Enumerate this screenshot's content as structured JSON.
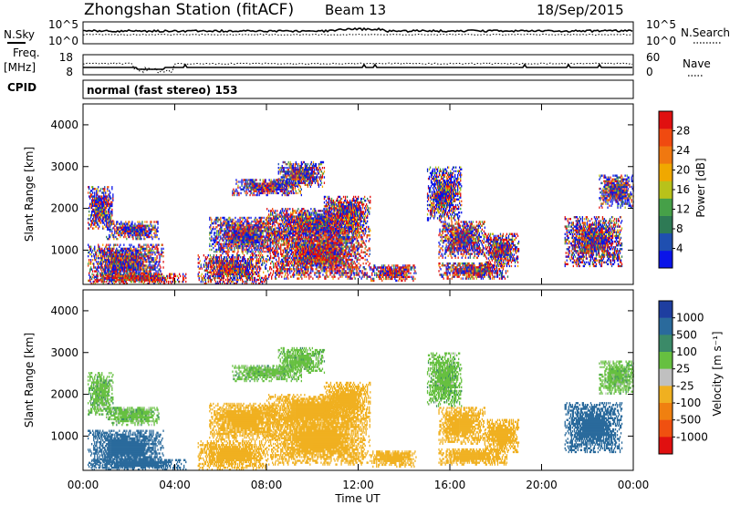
{
  "header": {
    "station": "Zhongshan Station (fitACF)",
    "beam": "Beam 13",
    "date": "18/Sep/2015"
  },
  "noise_panel": {
    "left_label": "N.Sky",
    "right_label": "N.Search",
    "left_ticks": [
      "10^5",
      "10^0"
    ],
    "right_ticks": [
      "10^5",
      "10^0"
    ]
  },
  "freq_panel": {
    "label_line1": "Freq.",
    "label_line2": "[MHz]",
    "left_ticks": [
      "18",
      "8"
    ],
    "right_ticks": [
      "60",
      "0"
    ],
    "right_label": "Nave"
  },
  "cpid": {
    "label": "CPID",
    "value": "normal (fast stereo) 153"
  },
  "colors": {
    "power_scale": [
      "#0a14e8",
      "#1f4fb0",
      "#2e7a55",
      "#46a048",
      "#b8c21a",
      "#f0a800",
      "#f07810",
      "#f04a10",
      "#e01010"
    ],
    "velocity_scale": [
      "#1e3ea0",
      "#2a6a9c",
      "#3b8a68",
      "#66c040",
      "#c0c0c0",
      "#f0b020",
      "#f08010",
      "#f05010",
      "#e01010"
    ]
  },
  "chart_data": [
    {
      "type": "heatmap",
      "name": "power",
      "x_axis": {
        "range": [
          0,
          24
        ],
        "ticks": [
          "00:00",
          "04:00",
          "08:00",
          "12:00",
          "16:00",
          "20:00",
          "00:00"
        ],
        "label": "Time UT"
      },
      "y_axis": {
        "range": [
          180,
          4500
        ],
        "ticks": [
          1000,
          2000,
          3000,
          4000
        ],
        "label": "Slant Range [km]"
      },
      "colorbar": {
        "label": "Power [dB]",
        "ticks": [
          "4",
          "8",
          "12",
          "16",
          "20",
          "24",
          "28"
        ],
        "range": [
          0,
          30
        ]
      },
      "regions": [
        {
          "t0": 0.2,
          "t1": 1.3,
          "r0": 1500,
          "r1": 2500,
          "v": 9
        },
        {
          "t0": 0.2,
          "t1": 3.5,
          "r0": 250,
          "r1": 1150,
          "v": 10
        },
        {
          "t0": 0.3,
          "t1": 4.5,
          "r0": 180,
          "r1": 450,
          "v": 25
        },
        {
          "t0": 1.0,
          "t1": 3.3,
          "r0": 1250,
          "r1": 1700,
          "v": 8
        },
        {
          "t0": 5.0,
          "t1": 8.0,
          "r0": 180,
          "r1": 900,
          "v": 15
        },
        {
          "t0": 5.5,
          "t1": 8.5,
          "r0": 900,
          "r1": 1800,
          "v": 9
        },
        {
          "t0": 6.5,
          "t1": 9.5,
          "r0": 2300,
          "r1": 2700,
          "v": 8
        },
        {
          "t0": 8.0,
          "t1": 12.5,
          "r0": 300,
          "r1": 1500,
          "v": 20
        },
        {
          "t0": 8.0,
          "t1": 12.0,
          "r0": 1200,
          "r1": 2000,
          "v": 14
        },
        {
          "t0": 8.5,
          "t1": 10.5,
          "r0": 2500,
          "r1": 3100,
          "v": 7
        },
        {
          "t0": 10.5,
          "t1": 12.5,
          "r0": 1400,
          "r1": 2300,
          "v": 14
        },
        {
          "t0": 12.5,
          "t1": 14.5,
          "r0": 250,
          "r1": 650,
          "v": 18
        },
        {
          "t0": 15.0,
          "t1": 16.5,
          "r0": 1700,
          "r1": 3000,
          "v": 8
        },
        {
          "t0": 15.5,
          "t1": 17.5,
          "r0": 800,
          "r1": 1700,
          "v": 13
        },
        {
          "t0": 15.5,
          "t1": 18.5,
          "r0": 300,
          "r1": 700,
          "v": 17
        },
        {
          "t0": 17.5,
          "t1": 19.0,
          "r0": 600,
          "r1": 1400,
          "v": 14
        },
        {
          "t0": 21.0,
          "t1": 23.5,
          "r0": 600,
          "r1": 1800,
          "v": 11
        },
        {
          "t0": 22.5,
          "t1": 24.0,
          "r0": 2000,
          "r1": 2800,
          "v": 7
        }
      ]
    },
    {
      "type": "heatmap",
      "name": "velocity",
      "x_axis": {
        "range": [
          0,
          24
        ],
        "ticks": [
          "00:00",
          "04:00",
          "08:00",
          "12:00",
          "16:00",
          "20:00",
          "00:00"
        ],
        "label": "Time UT"
      },
      "y_axis": {
        "range": [
          180,
          4500
        ],
        "ticks": [
          1000,
          2000,
          3000,
          4000
        ],
        "label": "Slant Range [km]"
      },
      "colorbar": {
        "label": "Velocity [m s⁻¹]",
        "ticks": [
          "1000",
          "500",
          "100",
          "25",
          "-25",
          "-100",
          "-500",
          "-1000"
        ]
      },
      "regions": [
        {
          "t0": 0.2,
          "t1": 1.3,
          "r0": 1500,
          "r1": 2500,
          "v": 0
        },
        {
          "t0": 0.2,
          "t1": 3.5,
          "r0": 250,
          "r1": 1150,
          "v": 300
        },
        {
          "t0": 0.3,
          "t1": 4.5,
          "r0": 180,
          "r1": 450,
          "v": 300
        },
        {
          "t0": 1.0,
          "t1": 3.3,
          "r0": 1250,
          "r1": 1700,
          "v": 0
        },
        {
          "t0": 5.0,
          "t1": 8.0,
          "r0": 180,
          "r1": 900,
          "v": -300
        },
        {
          "t0": 5.5,
          "t1": 8.5,
          "r0": 900,
          "r1": 1800,
          "v": -300
        },
        {
          "t0": 6.5,
          "t1": 9.5,
          "r0": 2300,
          "r1": 2700,
          "v": 0
        },
        {
          "t0": 8.0,
          "t1": 12.5,
          "r0": 300,
          "r1": 1500,
          "v": -300
        },
        {
          "t0": 8.0,
          "t1": 12.0,
          "r0": 1200,
          "r1": 2000,
          "v": -300
        },
        {
          "t0": 8.5,
          "t1": 10.5,
          "r0": 2500,
          "r1": 3100,
          "v": 0
        },
        {
          "t0": 10.5,
          "t1": 12.5,
          "r0": 1400,
          "r1": 2300,
          "v": -300
        },
        {
          "t0": 12.5,
          "t1": 14.5,
          "r0": 250,
          "r1": 650,
          "v": -300
        },
        {
          "t0": 15.0,
          "t1": 16.5,
          "r0": 1700,
          "r1": 3000,
          "v": 0
        },
        {
          "t0": 15.5,
          "t1": 17.5,
          "r0": 800,
          "r1": 1700,
          "v": -300
        },
        {
          "t0": 15.5,
          "t1": 18.5,
          "r0": 300,
          "r1": 700,
          "v": -300
        },
        {
          "t0": 17.5,
          "t1": 19.0,
          "r0": 600,
          "r1": 1400,
          "v": -300
        },
        {
          "t0": 21.0,
          "t1": 23.5,
          "r0": 600,
          "r1": 1800,
          "v": 300
        },
        {
          "t0": 22.5,
          "t1": 24.0,
          "r0": 2000,
          "r1": 2800,
          "v": 0
        }
      ]
    }
  ]
}
